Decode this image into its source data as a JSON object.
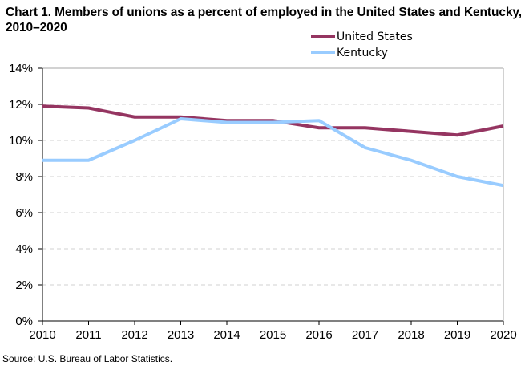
{
  "chart_data": {
    "type": "line",
    "title": "Chart 1. Members of unions as a percent of employed  in the United States and Kentucky, 2010–2020",
    "xlabel": "",
    "ylabel": "",
    "x": [
      "2010",
      "2011",
      "2012",
      "2013",
      "2014",
      "2015",
      "2016",
      "2017",
      "2018",
      "2019",
      "2020"
    ],
    "ylim": [
      0,
      14
    ],
    "yticks": [
      0,
      2,
      4,
      6,
      8,
      10,
      12,
      14
    ],
    "ytick_labels": [
      "0%",
      "2%",
      "4%",
      "6%",
      "8%",
      "10%",
      "12%",
      "14%"
    ],
    "grid": true,
    "legend_position": "top-right",
    "series": [
      {
        "name": "United States",
        "color": "#953561",
        "values": [
          11.9,
          11.8,
          11.3,
          11.3,
          11.1,
          11.1,
          10.7,
          10.7,
          10.5,
          10.3,
          10.8
        ]
      },
      {
        "name": "Kentucky",
        "color": "#99ccff",
        "values": [
          8.9,
          8.9,
          10.0,
          11.2,
          11.0,
          11.0,
          11.1,
          9.6,
          8.9,
          8.0,
          7.5
        ]
      }
    ],
    "source": "Source:  U.S. Bureau  of Labor  Statistics."
  }
}
